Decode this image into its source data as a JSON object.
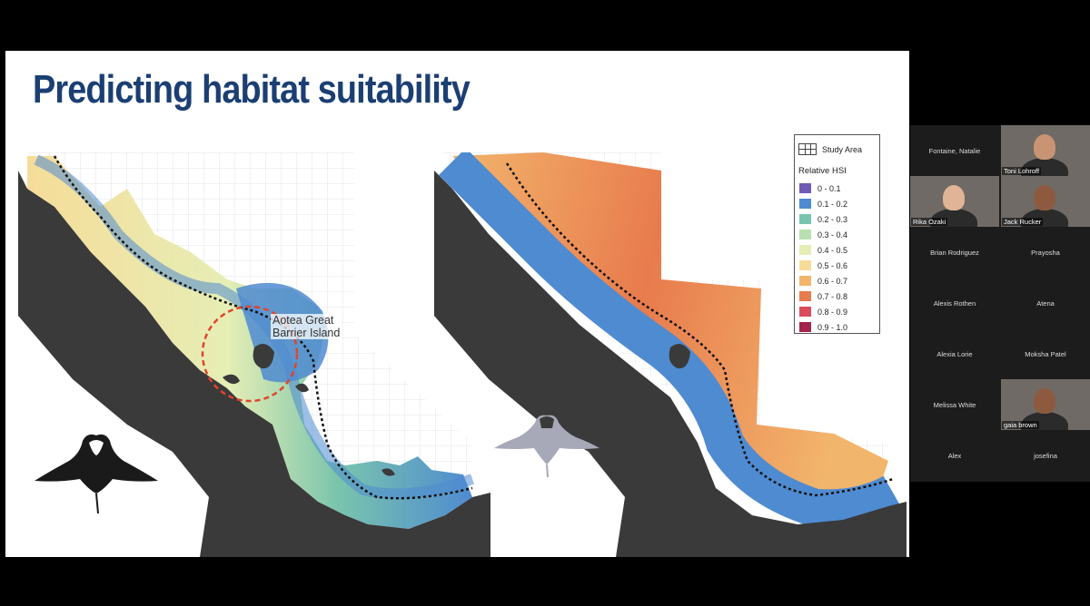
{
  "slide": {
    "title": "Predicting habitat suitability",
    "callout_line1": "Aotea Great",
    "callout_line2": "Barrier Island"
  },
  "legend": {
    "study_area_label": "Study Area",
    "title": "Relative HSI",
    "items": [
      {
        "label": "0 - 0.1",
        "color": "#6f5bb3"
      },
      {
        "label": "0.1 - 0.2",
        "color": "#4f8bd1"
      },
      {
        "label": "0.2 - 0.3",
        "color": "#79c4ad"
      },
      {
        "label": "0.3 - 0.4",
        "color": "#b9dfb2"
      },
      {
        "label": "0.4 - 0.5",
        "color": "#e6eeb5"
      },
      {
        "label": "0.5 - 0.6",
        "color": "#f6dc99"
      },
      {
        "label": "0.6 - 0.7",
        "color": "#f2b56c"
      },
      {
        "label": "0.7 - 0.8",
        "color": "#e87b4d"
      },
      {
        "label": "0.8 - 0.9",
        "color": "#d94c5c"
      },
      {
        "label": "0.9 - 1.0",
        "color": "#a3234a"
      }
    ]
  },
  "participants": [
    {
      "name": "Fontaine, Natalie",
      "video": false
    },
    {
      "name": "Toni Lohroff",
      "video": true
    },
    {
      "name": "Rika Ozaki",
      "video": true
    },
    {
      "name": "Jack Rucker",
      "video": true
    },
    {
      "name": "Brian Rodriguez",
      "video": false
    },
    {
      "name": "Prayosha",
      "video": false
    },
    {
      "name": "Alexis Rothen",
      "video": false
    },
    {
      "name": "Atena",
      "video": false
    },
    {
      "name": "Alexia Lorie",
      "video": false
    },
    {
      "name": "Moksha Patel",
      "video": false
    },
    {
      "name": "Melissa White",
      "video": false
    },
    {
      "name": "gaia brown",
      "video": true
    },
    {
      "name": "Alex",
      "video": false
    },
    {
      "name": "josefina",
      "video": false
    }
  ],
  "colors": {
    "land": "#3a3a3a",
    "title": "#1b3f73",
    "coast_line": "#111111",
    "circle": "#e0452c"
  }
}
